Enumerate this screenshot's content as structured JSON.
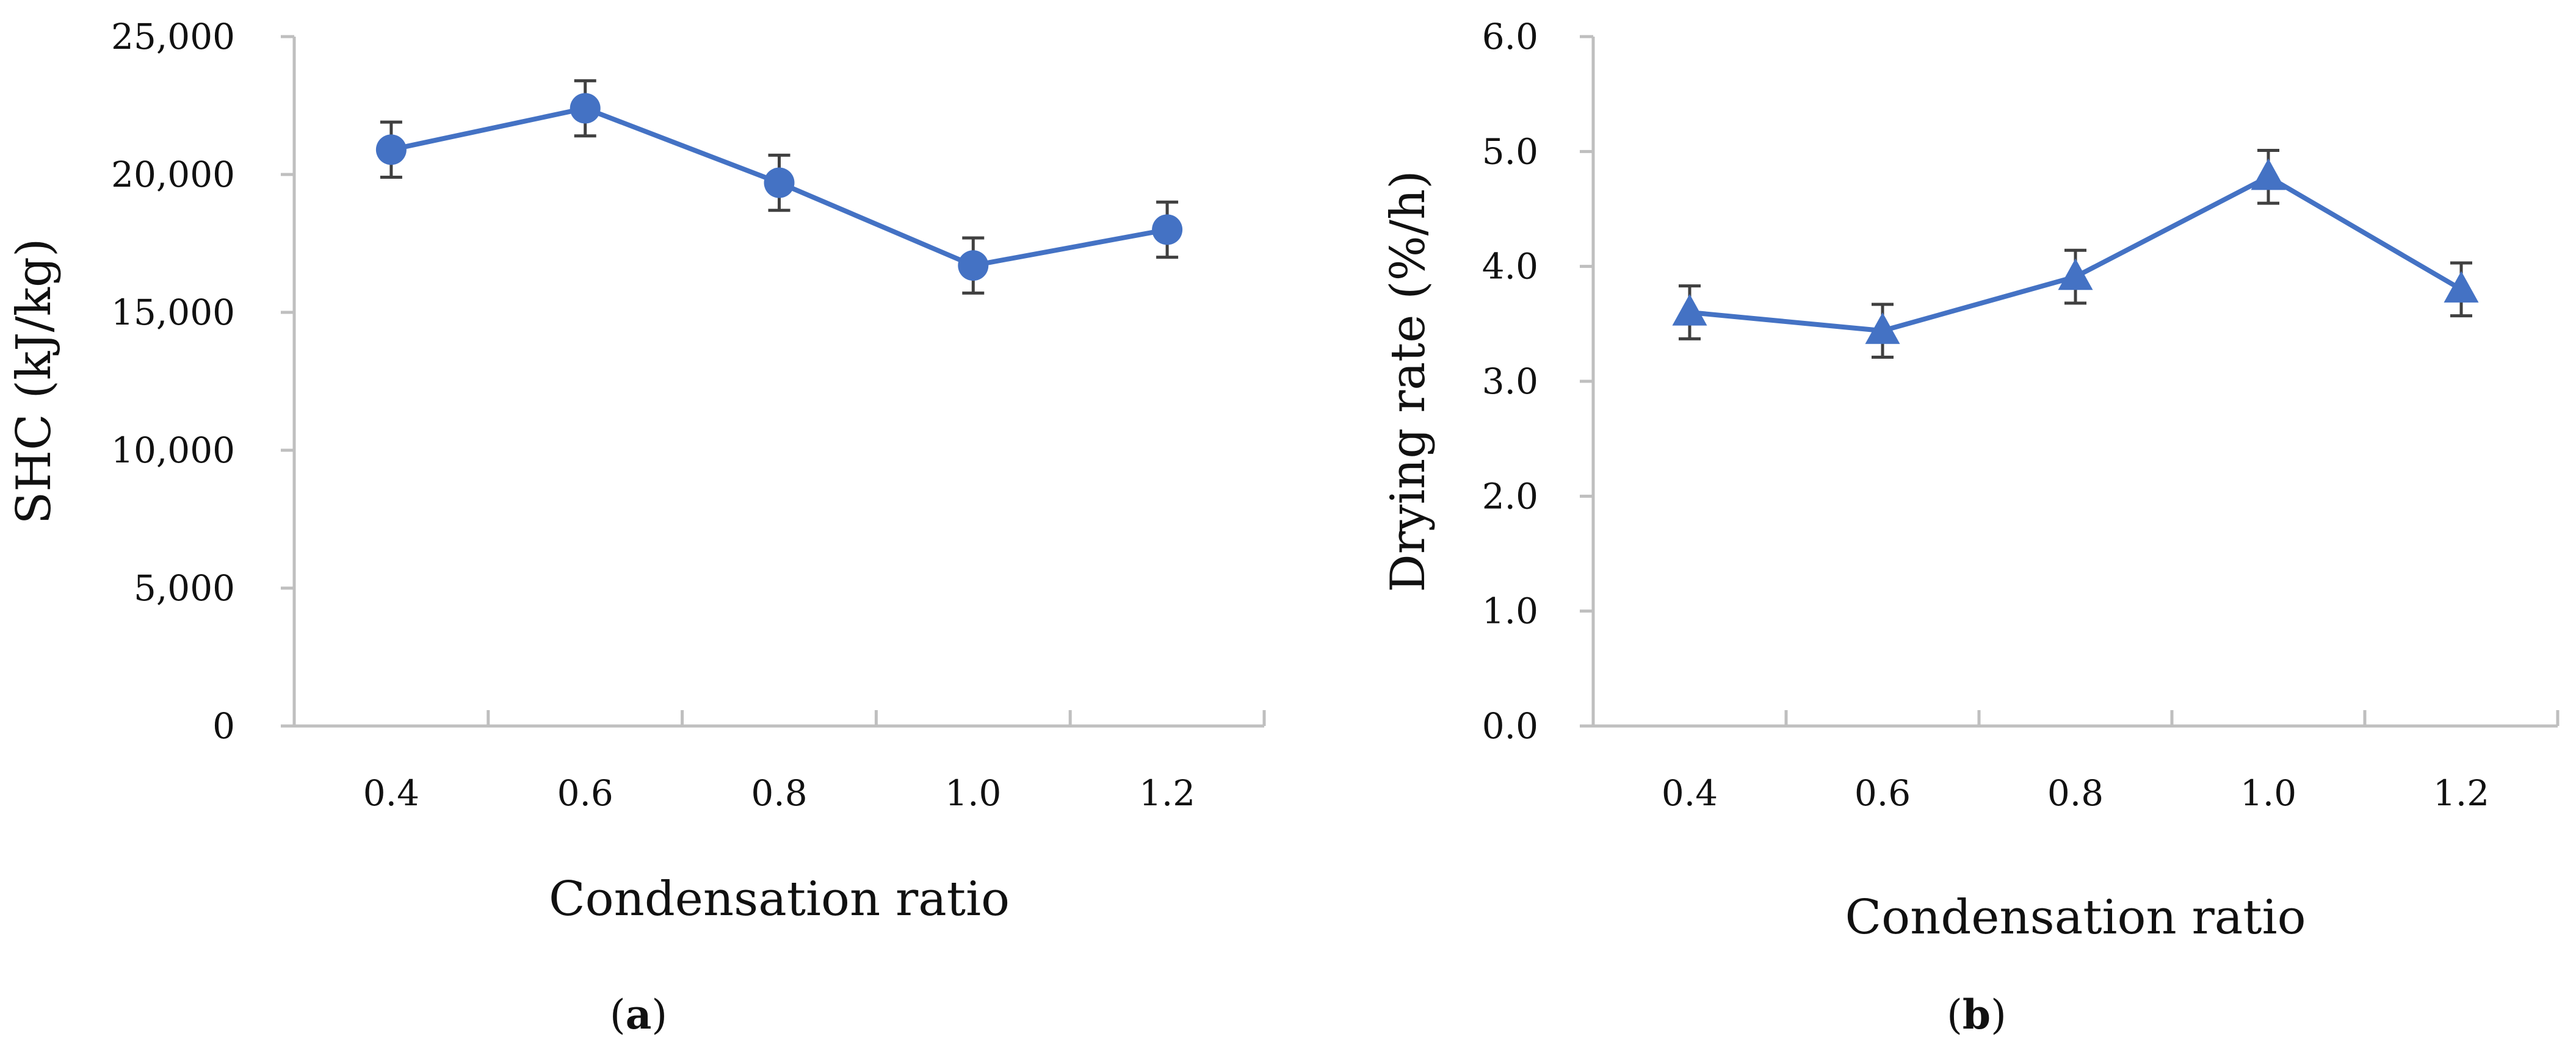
{
  "colors": {
    "series": "#4472C4",
    "axis": "#BFBFBF",
    "error_bar": "#404040",
    "text": "#111111"
  },
  "chart_data": [
    {
      "type": "line",
      "panel": "a",
      "xlabel": "Condensation ratio",
      "ylabel": "SHC (kJ/kg)",
      "categories": [
        "0.4",
        "0.6",
        "0.8",
        "1.0",
        "1.2"
      ],
      "ylim": [
        0,
        25000
      ],
      "yticks": [
        0,
        5000,
        10000,
        15000,
        20000,
        25000
      ],
      "ytick_labels": [
        "0",
        "5,000",
        "10,000",
        "15,000",
        "20,000",
        "25,000"
      ],
      "marker": "circle",
      "series": [
        {
          "name": "SHC",
          "values": [
            20900,
            22400,
            19700,
            16700,
            18000
          ],
          "errors": [
            1000,
            1000,
            1000,
            1000,
            1000
          ]
        }
      ]
    },
    {
      "type": "line",
      "panel": "b",
      "xlabel": "Condensation ratio",
      "ylabel": "Drying  rate (%/h)",
      "categories": [
        "0.4",
        "0.6",
        "0.8",
        "1.0",
        "1.2"
      ],
      "ylim": [
        0,
        6
      ],
      "yticks": [
        0,
        1,
        2,
        3,
        4,
        5,
        6
      ],
      "ytick_labels": [
        "0.0",
        "1.0",
        "2.0",
        "3.0",
        "4.0",
        "5.0",
        "6.0"
      ],
      "marker": "triangle",
      "series": [
        {
          "name": "Drying rate",
          "values": [
            3.6,
            3.44,
            3.91,
            4.78,
            3.8
          ],
          "errors": [
            0.23,
            0.23,
            0.23,
            0.23,
            0.23
          ]
        }
      ]
    }
  ],
  "panels": {
    "a": {
      "label_open": "(",
      "letter": "a",
      "label_close": ")"
    },
    "b": {
      "label_open": "(",
      "letter": "b",
      "label_close": ")"
    }
  }
}
